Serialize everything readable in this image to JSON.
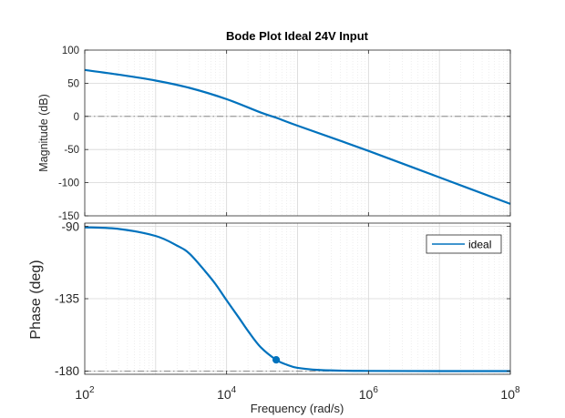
{
  "chart_data": {
    "title": "Bode Plot Ideal 24V Input",
    "xlabel": "Frequency  (rad/s)",
    "x_scale": "log",
    "xlim": [
      100,
      100000000
    ],
    "x_ticks": [
      {
        "value": 100,
        "base": "10",
        "exp": "2"
      },
      {
        "value": 10000,
        "base": "10",
        "exp": "4"
      },
      {
        "value": 1000000,
        "base": "10",
        "exp": "6"
      },
      {
        "value": 100000000,
        "base": "10",
        "exp": "8"
      }
    ],
    "grid": true,
    "legend_position": "top-right",
    "series_color": "#0072BD",
    "panels": [
      {
        "id": "magnitude",
        "type": "line",
        "ylabel": "Magnitude (dB)",
        "ylim": [
          -150,
          100
        ],
        "y_ticks": [
          "100",
          "50",
          "0",
          "-50",
          "-100",
          "-150"
        ],
        "y_tick_values": [
          100,
          50,
          0,
          -50,
          -100,
          -150
        ],
        "reference_line": 0,
        "series": [
          {
            "x": [
              100,
              300,
              1000,
              3000,
              10000,
              30000,
              50000,
              100000,
              1000000,
              10000000,
              100000000
            ],
            "y": [
              70,
              63,
              54,
              43,
              26,
              6,
              -2,
              -14,
              -52,
              -92,
              -132
            ]
          }
        ]
      },
      {
        "id": "phase",
        "type": "line",
        "ylabel": "Phase (deg)",
        "ylim": [
          -182,
          -88
        ],
        "y_ticks": [
          "-90",
          "-135",
          "-180"
        ],
        "y_tick_values": [
          -90,
          -135,
          -180
        ],
        "reference_line": -180,
        "legend": [
          "ideal"
        ],
        "marker": {
          "x": 50000,
          "y": -173
        },
        "series": [
          {
            "name": "ideal",
            "x": [
              100,
              300,
              1000,
              2000,
              3000,
              5000,
              7000,
              10000,
              15000,
              20000,
              30000,
              50000,
              70000,
              100000,
              200000,
              500000,
              1000000,
              10000000,
              100000000
            ],
            "y": [
              -90.6,
              -91.6,
              -96,
              -102,
              -107,
              -118,
              -126,
              -136,
              -147,
              -155,
              -165,
              -173,
              -176,
              -178,
              -179.3,
              -179.8,
              -179.9,
              -180,
              -180
            ]
          }
        ]
      }
    ]
  }
}
